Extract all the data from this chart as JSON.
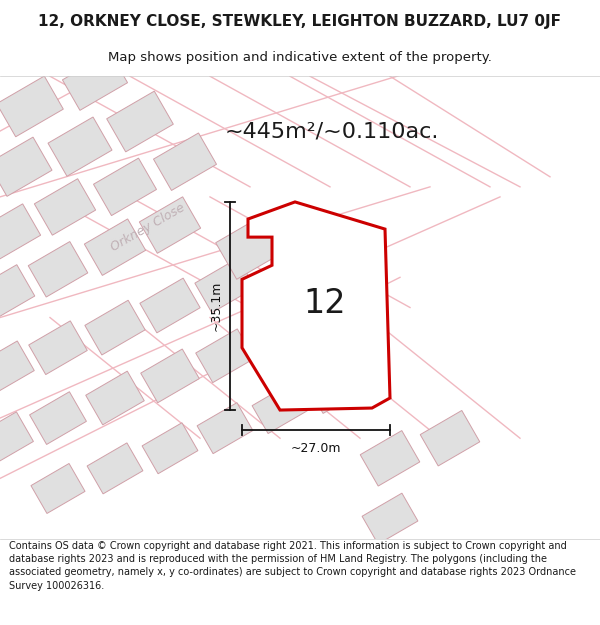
{
  "title": "12, ORKNEY CLOSE, STEWKLEY, LEIGHTON BUZZARD, LU7 0JF",
  "subtitle": "Map shows position and indicative extent of the property.",
  "area_text": "~445m²/~0.110ac.",
  "property_label": "12",
  "dim_width": "~27.0m",
  "dim_height": "~35.1m",
  "street_label": "Orkney Close",
  "footer_text": "Contains OS data © Crown copyright and database right 2021. This information is subject to Crown copyright and database rights 2023 and is reproduced with the permission of HM Land Registry. The polygons (including the associated geometry, namely x, y co-ordinates) are subject to Crown copyright and database rights 2023 Ordnance Survey 100026316.",
  "bg_color": "#ffffff",
  "map_bg": "#ffffff",
  "building_fill": "#e0e0e0",
  "building_edge": "#d0a0a8",
  "road_line_color": "#f0b8c0",
  "property_fill": "#ffffff",
  "property_outline": "#cc0000",
  "title_color": "#1a1a1a",
  "footer_color": "#1a1a1a",
  "street_color": "#c0a0a8",
  "dim_color": "#111111",
  "title_fontsize": 11,
  "subtitle_fontsize": 9.5,
  "footer_fontsize": 7.0,
  "area_fontsize": 16,
  "label_fontsize": 24,
  "dim_fontsize": 9,
  "street_fontsize": 9,
  "road_lw": 1.0,
  "bld_lw": 0.7,
  "prop_lw": 2.2
}
